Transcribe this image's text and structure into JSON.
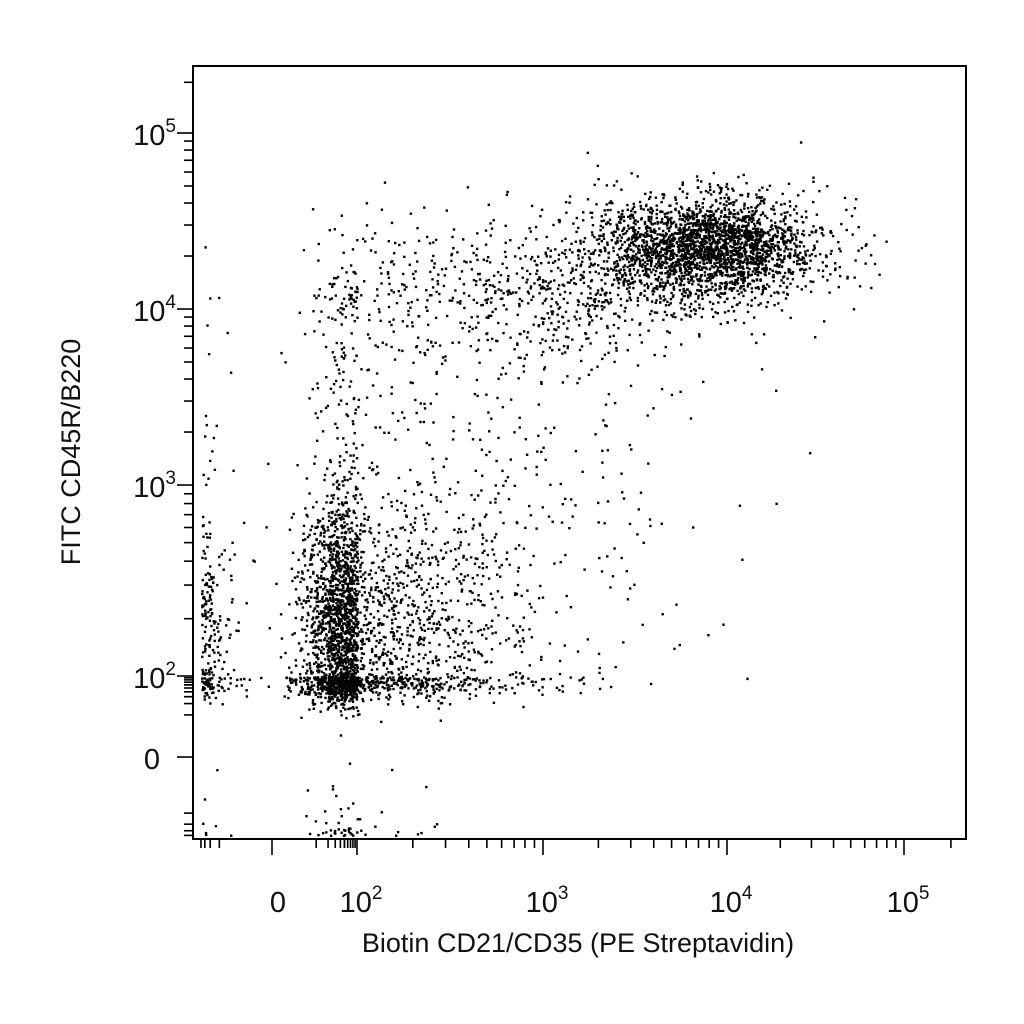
{
  "chart_data": {
    "type": "scatter",
    "title": "",
    "xlabel": "Biotin CD21/CD35 (PE Streptavidin)",
    "ylabel": "FITC CD45R/B220",
    "x_scale": "biexponential",
    "y_scale": "biexponential",
    "xlim": [
      -250,
      250000
    ],
    "ylim": [
      -150,
      250000
    ],
    "grid": false,
    "legend": "none",
    "point_color": "#000000",
    "x_ticks": [
      {
        "value": 0,
        "base": "0",
        "exp": ""
      },
      {
        "value": 100,
        "base": "10",
        "exp": "2"
      },
      {
        "value": 1000,
        "base": "10",
        "exp": "3"
      },
      {
        "value": 10000,
        "base": "10",
        "exp": "4"
      },
      {
        "value": 100000,
        "base": "10",
        "exp": "5"
      }
    ],
    "y_ticks": [
      {
        "value": 0,
        "base": "0",
        "exp": ""
      },
      {
        "value": 100,
        "base": "10",
        "exp": "2"
      },
      {
        "value": 1000,
        "base": "10",
        "exp": "3"
      },
      {
        "value": 10000,
        "base": "10",
        "exp": "4"
      },
      {
        "value": 100000,
        "base": "10",
        "exp": "5"
      }
    ],
    "populations": [
      {
        "n": 3200,
        "x_log_center": 1.75,
        "x_log_sd": 0.55,
        "y_log_center": 2.2,
        "y_log_sd": 0.4
      },
      {
        "n": 2600,
        "x_log_center": 3.9,
        "x_log_sd": 0.3,
        "y_log_center": 4.35,
        "y_log_sd": 0.15
      },
      {
        "n": 600,
        "x_log_center": 3.0,
        "x_log_sd": 0.45,
        "y_log_center": 4.1,
        "y_log_sd": 0.22
      },
      {
        "n": 220,
        "x_log_center": 1.9,
        "x_log_sd": 0.6,
        "y_log_center": 3.9,
        "y_log_sd": 0.35
      },
      {
        "n": 260,
        "x_log_center": 2.6,
        "x_log_sd": 0.6,
        "y_log_center": 3.0,
        "y_log_sd": 0.5
      }
    ]
  }
}
